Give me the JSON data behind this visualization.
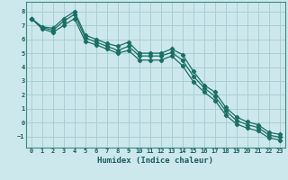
{
  "xlabel": "Humidex (Indice chaleur)",
  "xlim": [
    -0.5,
    23.5
  ],
  "ylim": [
    -1.8,
    8.7
  ],
  "xticks": [
    0,
    1,
    2,
    3,
    4,
    5,
    6,
    7,
    8,
    9,
    10,
    11,
    12,
    13,
    14,
    15,
    16,
    17,
    18,
    19,
    20,
    21,
    22,
    23
  ],
  "yticks": [
    -1,
    0,
    1,
    2,
    3,
    4,
    5,
    6,
    7,
    8
  ],
  "background_color": "#cce8ec",
  "grid_color": "#aacdd4",
  "line_color": "#1a6e64",
  "line1_x": [
    0,
    1,
    2,
    3,
    4,
    5,
    6,
    7,
    8,
    9,
    10,
    11,
    12,
    13,
    14,
    15,
    16,
    17,
    18,
    19,
    20,
    21,
    22,
    23
  ],
  "line1_y": [
    7.5,
    6.9,
    6.8,
    7.5,
    8.0,
    6.3,
    6.0,
    5.7,
    5.5,
    5.8,
    5.0,
    5.0,
    5.0,
    5.3,
    4.9,
    3.7,
    2.7,
    2.2,
    1.1,
    0.4,
    0.05,
    -0.15,
    -0.7,
    -0.85
  ],
  "line2_x": [
    0,
    1,
    2,
    3,
    4,
    5,
    6,
    7,
    8,
    9,
    10,
    11,
    12,
    13,
    14,
    15,
    16,
    17,
    18,
    19,
    20,
    21,
    22,
    23
  ],
  "line2_y": [
    7.5,
    6.85,
    6.65,
    7.3,
    7.8,
    6.1,
    5.8,
    5.5,
    5.2,
    5.5,
    4.8,
    4.8,
    4.8,
    5.05,
    4.5,
    3.35,
    2.5,
    1.9,
    0.85,
    0.15,
    -0.15,
    -0.35,
    -0.9,
    -1.05
  ],
  "line3_x": [
    0,
    1,
    2,
    3,
    4,
    5,
    6,
    7,
    8,
    9,
    10,
    11,
    12,
    13,
    14,
    15,
    16,
    17,
    18,
    19,
    20,
    21,
    22,
    23
  ],
  "line3_y": [
    7.5,
    6.75,
    6.5,
    7.0,
    7.5,
    5.85,
    5.6,
    5.3,
    5.0,
    5.2,
    4.5,
    4.5,
    4.5,
    4.8,
    4.1,
    2.95,
    2.2,
    1.6,
    0.55,
    -0.1,
    -0.4,
    -0.6,
    -1.1,
    -1.25
  ]
}
